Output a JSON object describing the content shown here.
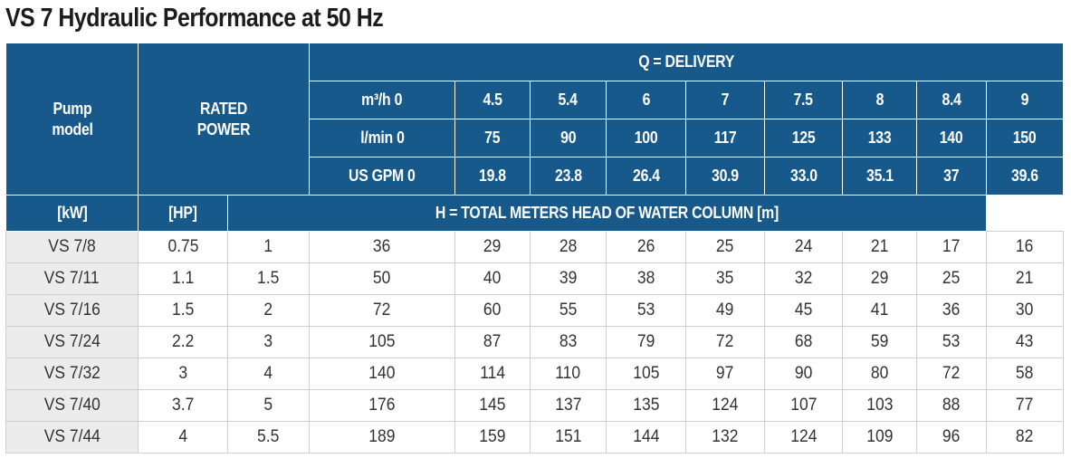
{
  "title": "VS 7 Hydraulic Performance at 50 Hz",
  "header": {
    "pump_model": "Pump model",
    "rated_power": "RATED POWER",
    "delivery": "Q = DELIVERY",
    "flow_rows": [
      {
        "label": "m³/h 0",
        "values": [
          "4.5",
          "5.4",
          "6",
          "7",
          "7.5",
          "8",
          "8.4",
          "9"
        ]
      },
      {
        "label": "l/min 0",
        "values": [
          "75",
          "90",
          "100",
          "117",
          "125",
          "133",
          "140",
          "150"
        ]
      },
      {
        "label": "US GPM 0",
        "values": [
          "19.8",
          "23.8",
          "26.4",
          "30.9",
          "33.0",
          "35.1",
          "37",
          "39.6"
        ]
      }
    ],
    "kw": "[kW]",
    "hp": "[HP]",
    "head": "H = TOTAL METERS HEAD OF WATER COLUMN [m]"
  },
  "rows": [
    {
      "model": "VS 7/8",
      "kw": "0.75",
      "hp": "1",
      "head": [
        "36",
        "29",
        "28",
        "26",
        "25",
        "24",
        "21",
        "17",
        "16"
      ]
    },
    {
      "model": "VS 7/11",
      "kw": "1.1",
      "hp": "1.5",
      "head": [
        "50",
        "40",
        "39",
        "38",
        "35",
        "32",
        "29",
        "25",
        "21"
      ]
    },
    {
      "model": "VS 7/16",
      "kw": "1.5",
      "hp": "2",
      "head": [
        "72",
        "60",
        "55",
        "53",
        "49",
        "45",
        "41",
        "36",
        "30"
      ]
    },
    {
      "model": "VS 7/24",
      "kw": "2.2",
      "hp": "3",
      "head": [
        "105",
        "87",
        "83",
        "79",
        "72",
        "68",
        "59",
        "53",
        "43"
      ]
    },
    {
      "model": "VS 7/32",
      "kw": "3",
      "hp": "4",
      "head": [
        "140",
        "114",
        "110",
        "105",
        "97",
        "90",
        "80",
        "72",
        "58"
      ]
    },
    {
      "model": "VS 7/40",
      "kw": "3.7",
      "hp": "5",
      "head": [
        "176",
        "145",
        "137",
        "135",
        "124",
        "107",
        "103",
        "88",
        "77"
      ]
    },
    {
      "model": "VS 7/44",
      "kw": "4",
      "hp": "5.5",
      "head": [
        "189",
        "159",
        "151",
        "144",
        "132",
        "124",
        "109",
        "96",
        "82"
      ]
    }
  ],
  "colors": {
    "header_bg": "#17598a",
    "model_col_bg": "#ececec"
  }
}
